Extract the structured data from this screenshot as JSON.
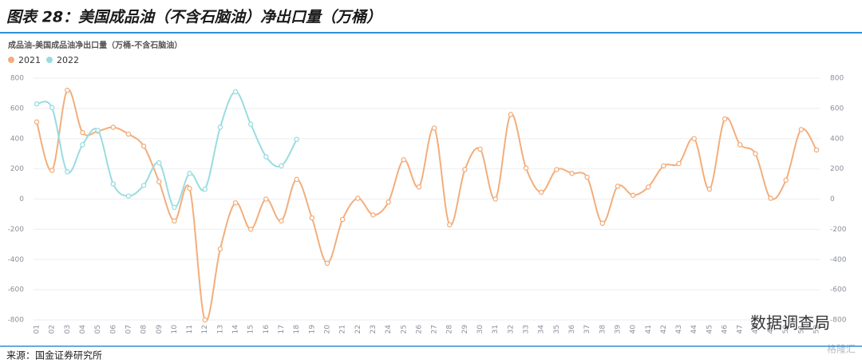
{
  "header": {
    "title": "图表 28：美国成品油（不含石脑油）净出口量（万桶）"
  },
  "chart_data": {
    "type": "line",
    "subtitle": "成品油-美国成品油净出口量（万桶-不含石脑油）",
    "categories": [
      "01",
      "02",
      "03",
      "04",
      "05",
      "06",
      "07",
      "08",
      "09",
      "10",
      "11",
      "12",
      "13",
      "14",
      "15",
      "16",
      "17",
      "18",
      "19",
      "20",
      "21",
      "22",
      "23",
      "24",
      "25",
      "26",
      "27",
      "28",
      "29",
      "30",
      "31",
      "32",
      "33",
      "34",
      "35",
      "36",
      "37",
      "38",
      "39",
      "40",
      "41",
      "42",
      "43",
      "44",
      "45",
      "46",
      "47",
      "48",
      "49",
      "50",
      "51",
      "52"
    ],
    "series": [
      {
        "name": "2021",
        "color": "#f2ae7c",
        "values": [
          510,
          190,
          720,
          440,
          450,
          475,
          430,
          350,
          115,
          -145,
          70,
          -800,
          -330,
          -25,
          -200,
          0,
          -145,
          130,
          -125,
          -425,
          -135,
          5,
          -105,
          -20,
          260,
          80,
          470,
          -170,
          195,
          330,
          0,
          560,
          205,
          45,
          195,
          170,
          145,
          -160,
          85,
          25,
          80,
          220,
          235,
          400,
          65,
          530,
          360,
          300,
          5,
          125,
          460,
          325
        ]
      },
      {
        "name": "2022",
        "color": "#99dce0",
        "values": [
          630,
          605,
          180,
          360,
          455,
          100,
          20,
          90,
          240,
          -55,
          170,
          65,
          475,
          710,
          495,
          280,
          220,
          395,
          null,
          null,
          null,
          null,
          null,
          null,
          null,
          null,
          null,
          null,
          null,
          null,
          null,
          null,
          null,
          null,
          null,
          null,
          null,
          null,
          null,
          null,
          null,
          null,
          null,
          null,
          null,
          null,
          null,
          null,
          null,
          null,
          null,
          null
        ]
      }
    ],
    "ylim": [
      -800,
      800
    ],
    "yticks": [
      -800,
      -600,
      -400,
      -200,
      0,
      200,
      400,
      600,
      800
    ],
    "grid": true,
    "legend": "top-left"
  },
  "footer": {
    "source": "来源：国金证券研究所"
  },
  "watermarks": [
    "数据调查局",
    "格隆汇"
  ]
}
